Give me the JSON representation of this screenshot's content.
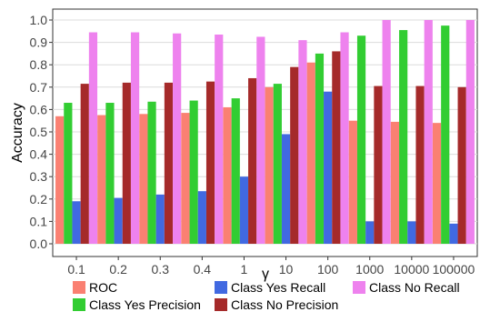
{
  "chart_data": {
    "type": "bar",
    "xlabel": "γ",
    "ylabel": "Accuracy",
    "categories": [
      "0.1",
      "0.2",
      "0.3",
      "0.4",
      "1",
      "10",
      "100",
      "1000",
      "10000",
      "100000"
    ],
    "ylim": [
      0,
      1.0
    ],
    "yticks": [
      "0.0",
      "0.1",
      "0.2",
      "0.3",
      "0.4",
      "0.5",
      "0.6",
      "0.7",
      "0.8",
      "0.9",
      "1.0"
    ],
    "grid": true,
    "legend_position": "bottom",
    "series": [
      {
        "name": "ROC",
        "color": "#fa8072",
        "values": [
          0.57,
          0.575,
          0.58,
          0.585,
          0.61,
          0.7,
          0.81,
          0.55,
          0.545,
          0.54
        ]
      },
      {
        "name": "Class Yes Precision",
        "color": "#32cd32",
        "values": [
          0.63,
          0.63,
          0.635,
          0.64,
          0.65,
          0.715,
          0.85,
          0.93,
          0.955,
          0.975
        ]
      },
      {
        "name": "Class Yes Recall",
        "color": "#4169e1",
        "values": [
          0.19,
          0.205,
          0.22,
          0.235,
          0.3,
          0.49,
          0.68,
          0.1,
          0.1,
          0.09
        ]
      },
      {
        "name": "Class No Precision",
        "color": "#a52a2a",
        "values": [
          0.715,
          0.72,
          0.72,
          0.725,
          0.74,
          0.79,
          0.86,
          0.705,
          0.705,
          0.7
        ]
      },
      {
        "name": "Class No Recall",
        "color": "#ee82ee",
        "values": [
          0.945,
          0.945,
          0.94,
          0.935,
          0.925,
          0.91,
          0.945,
          1.0,
          1.0,
          1.0
        ]
      }
    ]
  }
}
